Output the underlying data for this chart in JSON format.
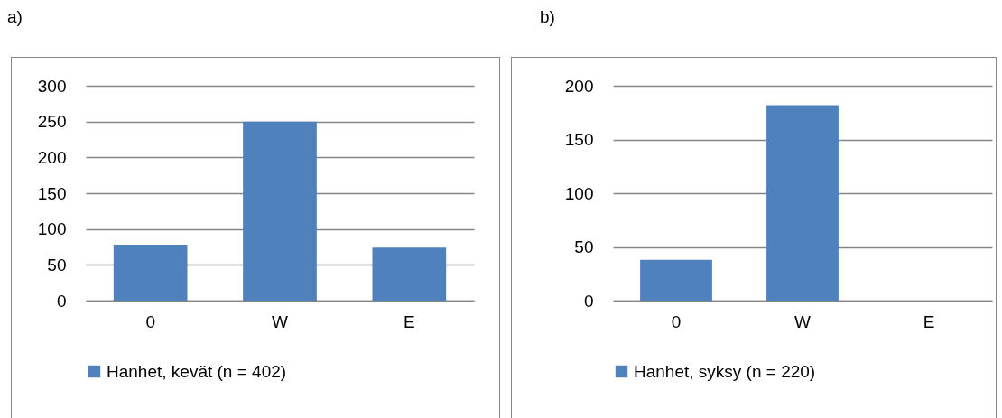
{
  "chart_data": [
    {
      "type": "bar",
      "title": "a)",
      "categories": [
        "0",
        "W",
        "E"
      ],
      "series": [
        {
          "name": "Hanhet, kevät (n = 402)",
          "color": "#4f81bd",
          "values": [
            78,
            250,
            74
          ]
        }
      ],
      "ylim": [
        0,
        300
      ],
      "yticks": [
        0,
        50,
        100,
        150,
        200,
        250,
        300
      ],
      "grid": "y",
      "legend": "bottom"
    },
    {
      "type": "bar",
      "title": "b)",
      "categories": [
        "0",
        "W",
        "E"
      ],
      "series": [
        {
          "name": "Hanhet, syksy (n = 220)",
          "color": "#4f81bd",
          "values": [
            38,
            182,
            0
          ]
        }
      ],
      "ylim": [
        0,
        200
      ],
      "yticks": [
        0,
        50,
        100,
        150,
        200
      ],
      "grid": "y",
      "legend": "bottom"
    }
  ]
}
